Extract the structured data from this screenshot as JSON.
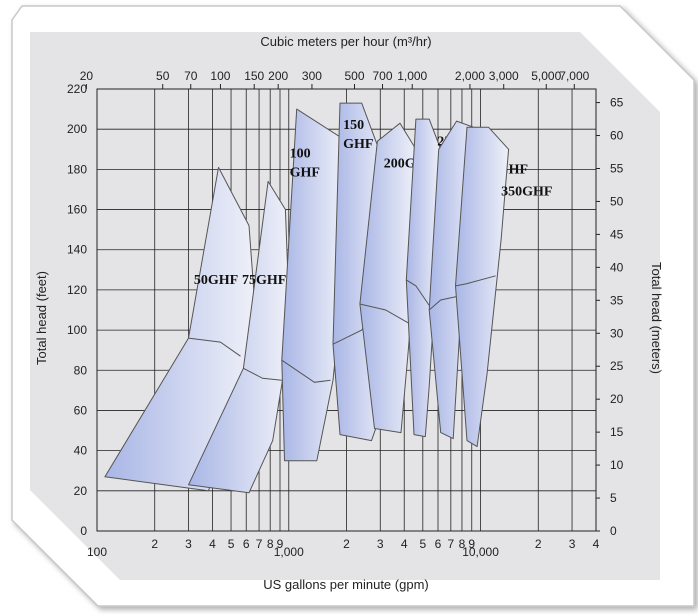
{
  "colors": {
    "panel": "#e4e4e6",
    "grid": "#222222",
    "region_dark": "#a9b6e6",
    "region_light": "#eef0f8",
    "region_edge": "#555555"
  },
  "chart_data": {
    "type": "area",
    "title": "",
    "xlabel": "US gallons per minute (gpm)",
    "x2label": "Cubic meters per hour (m³/hr)",
    "ylabel": "Total head (feet)",
    "y2label": "Total head (meters)",
    "x_scale": "log",
    "xlim": [
      100,
      40000
    ],
    "ylim": [
      0,
      220
    ],
    "y2lim": [
      0,
      67.06
    ],
    "grid": true,
    "x_ticks": [
      {
        "v": 100,
        "label": "100"
      },
      {
        "v": 200,
        "label": "2"
      },
      {
        "v": 300,
        "label": "3"
      },
      {
        "v": 400,
        "label": "4"
      },
      {
        "v": 500,
        "label": "5"
      },
      {
        "v": 600,
        "label": "6"
      },
      {
        "v": 700,
        "label": "7"
      },
      {
        "v": 800,
        "label": "8"
      },
      {
        "v": 900,
        "label": "9"
      },
      {
        "v": 1000,
        "label": "1,000"
      },
      {
        "v": 2000,
        "label": "2"
      },
      {
        "v": 3000,
        "label": "3"
      },
      {
        "v": 4000,
        "label": "4"
      },
      {
        "v": 5000,
        "label": "5"
      },
      {
        "v": 6000,
        "label": "6"
      },
      {
        "v": 7000,
        "label": "7"
      },
      {
        "v": 8000,
        "label": "8"
      },
      {
        "v": 9000,
        "label": "9"
      },
      {
        "v": 10000,
        "label": "10,000"
      },
      {
        "v": 20000,
        "label": "2"
      },
      {
        "v": 30000,
        "label": "3"
      },
      {
        "v": 40000,
        "label": "4"
      }
    ],
    "x2_ticks": [
      {
        "v": 20,
        "label": "20"
      },
      {
        "v": 50,
        "label": "50"
      },
      {
        "v": 70,
        "label": "70"
      },
      {
        "v": 100,
        "label": "100"
      },
      {
        "v": 150,
        "label": "150"
      },
      {
        "v": 200,
        "label": "200"
      },
      {
        "v": 300,
        "label": "300"
      },
      {
        "v": 500,
        "label": "500"
      },
      {
        "v": 700,
        "label": "700"
      },
      {
        "v": 1000,
        "label": "1,000"
      },
      {
        "v": 2000,
        "label": "2,000"
      },
      {
        "v": 3000,
        "label": "3,000"
      },
      {
        "v": 5000,
        "label": "5,000"
      },
      {
        "v": 7000,
        "label": "7,000"
      }
    ],
    "y_ticks": [
      0,
      20,
      40,
      60,
      80,
      100,
      120,
      140,
      160,
      180,
      200,
      220
    ],
    "y2_ticks": [
      0,
      5,
      10,
      15,
      20,
      25,
      30,
      35,
      40,
      45,
      50,
      55,
      60,
      65
    ],
    "series": [
      {
        "name": "50GHF",
        "label_lines": [
          "50GHF"
        ],
        "label_at": [
          320,
          123
        ],
        "boundary": [
          [
            110,
            27
          ],
          [
            380,
            20
          ],
          [
            500,
            43
          ],
          [
            615,
            87
          ],
          [
            660,
            117
          ],
          [
            620,
            152
          ],
          [
            430,
            181
          ],
          [
            300,
            96
          ]
        ],
        "divider": [
          [
            300,
            96
          ],
          [
            440,
            94
          ],
          [
            560,
            87
          ]
        ]
      },
      {
        "name": "75GHF",
        "label_lines": [
          "75GHF"
        ],
        "label_at": [
          570,
          123
        ],
        "boundary": [
          [
            300,
            23
          ],
          [
            620,
            19
          ],
          [
            825,
            45
          ],
          [
            960,
            84
          ],
          [
            1000,
            115
          ],
          [
            960,
            160
          ],
          [
            780,
            174
          ],
          [
            580,
            81
          ]
        ],
        "divider": [
          [
            580,
            81
          ],
          [
            730,
            76
          ],
          [
            920,
            75
          ]
        ]
      },
      {
        "name": "100 GHF",
        "label_lines": [
          "100",
          "GHF"
        ],
        "label_at": [
          1010,
          186
        ],
        "boundary": [
          [
            950,
            35
          ],
          [
            1400,
            35
          ],
          [
            1700,
            75
          ],
          [
            1900,
            120
          ],
          [
            1950,
            162
          ],
          [
            1860,
            196
          ],
          [
            1100,
            210
          ],
          [
            920,
            85
          ]
        ],
        "divider": [
          [
            920,
            85
          ],
          [
            1360,
            74
          ],
          [
            1650,
            75
          ]
        ]
      },
      {
        "name": "150 GHF",
        "label_lines": [
          "150",
          "GHF"
        ],
        "label_at": [
          1920,
          200
        ],
        "boundary": [
          [
            1850,
            48
          ],
          [
            2700,
            45
          ],
          [
            3200,
            65
          ],
          [
            3300,
            115
          ],
          [
            2950,
            190
          ],
          [
            2400,
            213
          ],
          [
            1850,
            213
          ],
          [
            1700,
            93
          ]
        ],
        "divider": [
          [
            1700,
            93
          ],
          [
            2400,
            100
          ],
          [
            2850,
            110
          ]
        ]
      },
      {
        "name": "200GHF",
        "label_lines": [
          "200GHF"
        ],
        "label_at": [
          3130,
          181
        ],
        "boundary": [
          [
            2800,
            51
          ],
          [
            3850,
            49
          ],
          [
            4200,
            90
          ],
          [
            4500,
            125
          ],
          [
            4600,
            190
          ],
          [
            3800,
            203
          ],
          [
            2900,
            194
          ],
          [
            2350,
            113
          ]
        ],
        "divider": [
          [
            2350,
            113
          ],
          [
            3200,
            110
          ],
          [
            4300,
            103
          ]
        ]
      },
      {
        "name": "250GHF",
        "label_lines": [
          "250GHF"
        ],
        "label_at": [
          5950,
          192
        ],
        "boundary": [
          [
            4500,
            48
          ],
          [
            5150,
            47
          ],
          [
            5400,
            72
          ],
          [
            5850,
            125
          ],
          [
            6200,
            190
          ],
          [
            5400,
            205
          ],
          [
            4600,
            205
          ],
          [
            4100,
            125
          ]
        ],
        "divider": [
          [
            4100,
            125
          ],
          [
            4600,
            122
          ],
          [
            5700,
            109
          ]
        ]
      },
      {
        "name": "300GHF",
        "label_lines": [
          "300GHF"
        ],
        "label_at": [
          9550,
          178
        ],
        "boundary": [
          [
            6200,
            49
          ],
          [
            7200,
            46
          ],
          [
            7800,
            100
          ],
          [
            9000,
            146
          ],
          [
            9800,
            200
          ],
          [
            7500,
            204
          ],
          [
            6050,
            190
          ],
          [
            5400,
            110
          ]
        ],
        "divider": [
          [
            5400,
            110
          ],
          [
            6200,
            115
          ],
          [
            7800,
            117
          ]
        ]
      },
      {
        "name": "350GHF",
        "label_lines": [
          "350GHF"
        ],
        "label_at": [
          12800,
          167
        ],
        "boundary": [
          [
            8500,
            45
          ],
          [
            9600,
            42
          ],
          [
            10800,
            78
          ],
          [
            12800,
            145
          ],
          [
            14000,
            190
          ],
          [
            11000,
            201
          ],
          [
            8500,
            201
          ],
          [
            7400,
            122
          ]
        ],
        "divider": [
          [
            7400,
            122
          ],
          [
            8400,
            123
          ],
          [
            12000,
            127
          ]
        ]
      }
    ]
  }
}
